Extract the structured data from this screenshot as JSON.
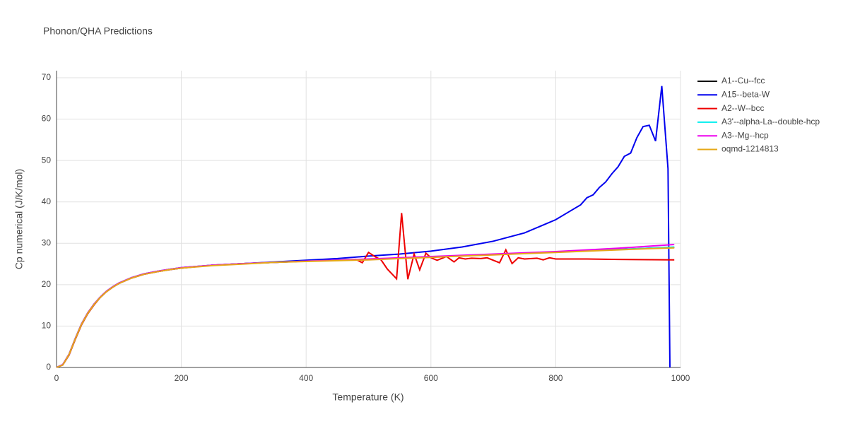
{
  "chart_data": {
    "type": "line",
    "title": "Phonon/QHA Predictions",
    "x_label": "Temperature (K)",
    "y_label": "Cp numerical (J/K/mol)",
    "xlim": [
      0,
      1000
    ],
    "ylim": [
      0,
      71.7
    ],
    "xticks": [
      0,
      200,
      400,
      600,
      800,
      1000
    ],
    "yticks": [
      0,
      10,
      20,
      30,
      40,
      50,
      60,
      70
    ],
    "grid": true,
    "legend": "right",
    "series": [
      {
        "name": "A1--Cu--fcc",
        "color": "#000000",
        "x": [
          0,
          10,
          20,
          30,
          40,
          50,
          60,
          70,
          80,
          90,
          100,
          120,
          140,
          160,
          180,
          200,
          250,
          300,
          350,
          400,
          450,
          500,
          550,
          600,
          650,
          700,
          750,
          800,
          850,
          900,
          950,
          990
        ],
        "values": [
          0,
          0.7,
          3.2,
          7,
          10.5,
          13.2,
          15.3,
          17,
          18.4,
          19.5,
          20.4,
          21.7,
          22.6,
          23.2,
          23.7,
          24.1,
          24.7,
          25.1,
          25.4,
          25.7,
          25.9,
          26.1,
          26.4,
          26.7,
          27,
          27.3,
          27.6,
          27.9,
          28.2,
          28.5,
          28.8,
          29
        ]
      },
      {
        "name": "A15--beta-W",
        "color": "#0000ee",
        "x": [
          0,
          10,
          20,
          30,
          40,
          50,
          60,
          70,
          80,
          90,
          100,
          120,
          140,
          160,
          180,
          200,
          250,
          300,
          350,
          400,
          450,
          500,
          550,
          600,
          650,
          700,
          750,
          800,
          820,
          840,
          850,
          860,
          870,
          880,
          890,
          900,
          910,
          920,
          930,
          940,
          950,
          960,
          970,
          980,
          983
        ],
        "values": [
          0,
          0.6,
          3,
          6.8,
          10.3,
          13,
          15.1,
          16.9,
          18.3,
          19.4,
          20.3,
          21.6,
          22.5,
          23.1,
          23.6,
          24,
          24.7,
          25.1,
          25.5,
          25.9,
          26.3,
          26.9,
          27.4,
          28.1,
          29.1,
          30.5,
          32.5,
          35.7,
          37.5,
          39.3,
          41,
          41.7,
          43.5,
          44.8,
          46.8,
          48.5,
          51,
          51.8,
          55.5,
          58.2,
          58.5,
          54.7,
          68,
          48,
          0
        ]
      },
      {
        "name": "A2--W--bcc",
        "color": "#ee0000",
        "x": [
          0,
          10,
          20,
          30,
          40,
          50,
          60,
          70,
          80,
          90,
          100,
          120,
          140,
          160,
          180,
          200,
          250,
          300,
          350,
          400,
          450,
          480,
          490,
          500,
          510,
          520,
          530,
          545,
          553,
          563,
          573,
          582,
          592,
          600,
          610,
          625,
          637,
          645,
          655,
          665,
          680,
          690,
          710,
          720,
          730,
          740,
          750,
          770,
          780,
          790,
          800,
          850,
          900,
          990
        ],
        "values": [
          0,
          0.6,
          3,
          6.8,
          10.3,
          13,
          15.1,
          16.9,
          18.3,
          19.4,
          20.3,
          21.6,
          22.5,
          23.1,
          23.6,
          24,
          24.7,
          25.1,
          25.4,
          25.7,
          25.9,
          26.1,
          25.3,
          27.8,
          26.8,
          26,
          23.8,
          21.4,
          37.3,
          21.3,
          27.4,
          23.6,
          27.6,
          26.5,
          25.9,
          26.8,
          25.5,
          26.5,
          26.2,
          26.4,
          26.3,
          26.5,
          25.3,
          28.4,
          25.1,
          26.5,
          26.2,
          26.4,
          26,
          26.5,
          26.2,
          26.2,
          26.1,
          26
        ]
      },
      {
        "name": "A3'--alpha-La--double-hcp",
        "color": "#00eeee",
        "x": [
          0,
          10,
          20,
          30,
          40,
          50,
          60,
          70,
          80,
          90,
          100,
          120,
          140,
          160,
          180,
          200,
          250,
          300,
          350,
          400,
          450,
          500,
          550,
          600,
          650,
          700,
          750,
          800,
          850,
          900,
          950,
          990
        ],
        "values": [
          0,
          0.7,
          3.2,
          7,
          10.5,
          13.2,
          15.3,
          17,
          18.4,
          19.5,
          20.4,
          21.7,
          22.6,
          23.2,
          23.7,
          24.1,
          24.7,
          25.1,
          25.4,
          25.7,
          25.9,
          26.1,
          26.4,
          26.7,
          27,
          27.3,
          27.6,
          27.9,
          28.2,
          28.5,
          28.8,
          29.1
        ]
      },
      {
        "name": "A3--Mg--hcp",
        "color": "#ee00ee",
        "x": [
          0,
          10,
          20,
          30,
          40,
          50,
          60,
          70,
          80,
          90,
          100,
          120,
          140,
          160,
          180,
          200,
          250,
          300,
          350,
          400,
          450,
          500,
          550,
          600,
          650,
          700,
          750,
          800,
          850,
          900,
          950,
          990
        ],
        "values": [
          0,
          0.7,
          3.2,
          7,
          10.5,
          13.2,
          15.3,
          17,
          18.4,
          19.5,
          20.4,
          21.7,
          22.6,
          23.2,
          23.7,
          24.1,
          24.7,
          25.1,
          25.4,
          25.7,
          25.9,
          26.2,
          26.5,
          26.8,
          27.1,
          27.4,
          27.7,
          28,
          28.4,
          28.8,
          29.3,
          29.7
        ]
      },
      {
        "name": "oqmd-1214813",
        "color": "#e6a817",
        "x": [
          0,
          10,
          20,
          30,
          40,
          50,
          60,
          70,
          80,
          90,
          100,
          120,
          140,
          160,
          180,
          200,
          250,
          300,
          350,
          400,
          450,
          500,
          550,
          600,
          650,
          700,
          750,
          800,
          850,
          900,
          950,
          990
        ],
        "values": [
          0,
          0.6,
          3.1,
          6.9,
          10.4,
          13.1,
          15.2,
          16.9,
          18.3,
          19.4,
          20.3,
          21.6,
          22.5,
          23.1,
          23.6,
          24,
          24.6,
          25,
          25.4,
          25.6,
          25.8,
          26,
          26.3,
          26.6,
          26.9,
          27.2,
          27.5,
          27.8,
          28.1,
          28.4,
          28.7,
          28.9
        ]
      }
    ]
  }
}
